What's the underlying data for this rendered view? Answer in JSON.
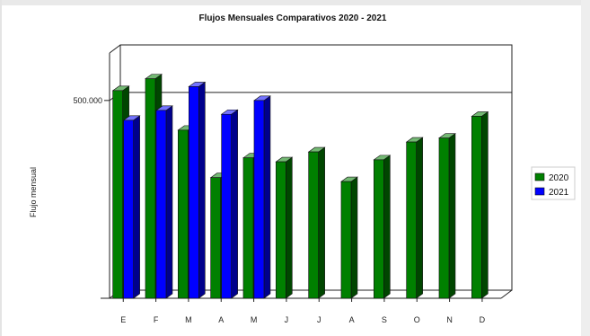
{
  "chart_data": {
    "type": "bar",
    "title": "Flujos Mensuales Comparativos 2020 - 2021",
    "xlabel": "",
    "ylabel": "Flujo mensual",
    "categories": [
      "E",
      "F",
      "M",
      "A",
      "M",
      "J",
      "J",
      "A",
      "S",
      "O",
      "N",
      "D"
    ],
    "series": [
      {
        "name": "2020",
        "color": "#008000",
        "values": [
          525000,
          555000,
          425000,
          305000,
          355000,
          345000,
          370000,
          295000,
          350000,
          395000,
          405000,
          460000
        ]
      },
      {
        "name": "2021",
        "color": "#0000ff",
        "values": [
          450000,
          475000,
          535000,
          465000,
          500000,
          null,
          null,
          null,
          null,
          null,
          null,
          null
        ]
      }
    ],
    "ylim": [
      0,
      620000
    ],
    "yticks": [
      {
        "value": 500000,
        "label": "500.000"
      }
    ],
    "grid": true,
    "legend_position": "right",
    "style": "3d"
  }
}
